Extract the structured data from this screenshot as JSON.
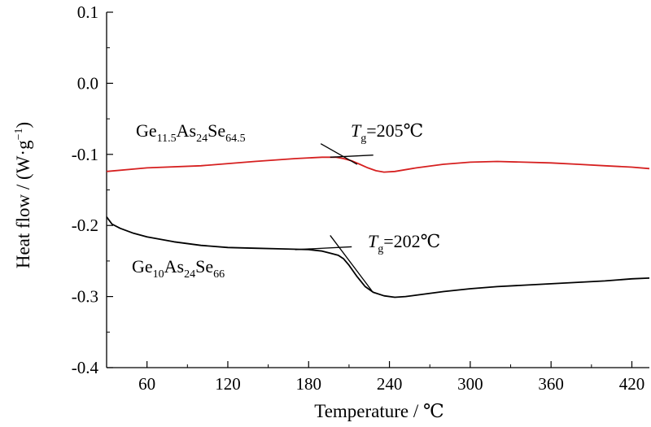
{
  "chart_data": {
    "type": "line",
    "xlabel": "Temperature / ℃",
    "ylabel": {
      "main": "Heat flow / (W·g",
      "sup": "−1",
      "close": ")"
    },
    "xlim": [
      30,
      433
    ],
    "ylim": [
      -0.4,
      0.1
    ],
    "xticks": [
      "60",
      "120",
      "180",
      "240",
      "300",
      "360",
      "420"
    ],
    "xtick_values": [
      60,
      120,
      180,
      240,
      300,
      360,
      420
    ],
    "yticks": [
      "0.1",
      "0.0",
      "-0.1",
      "-0.2",
      "-0.3",
      "-0.4"
    ],
    "ytick_values": [
      0.1,
      0.0,
      -0.1,
      -0.2,
      -0.3,
      -0.4
    ],
    "grid": false,
    "series": [
      {
        "name": "Ge11.5As24Se64.5",
        "color": "#d62020",
        "x": [
          30,
          60,
          100,
          140,
          170,
          190,
          200,
          206,
          212,
          218,
          224,
          230,
          236,
          244,
          260,
          280,
          300,
          320,
          340,
          360,
          380,
          400,
          420,
          433
        ],
        "y": [
          -0.124,
          -0.119,
          -0.116,
          -0.11,
          -0.106,
          -0.104,
          -0.104,
          -0.106,
          -0.109,
          -0.114,
          -0.119,
          -0.123,
          -0.125,
          -0.124,
          -0.119,
          -0.114,
          -0.111,
          -0.11,
          -0.111,
          -0.112,
          -0.114,
          -0.116,
          -0.118,
          -0.12
        ]
      },
      {
        "name": "Ge10As24Se66",
        "color": "#000000",
        "x": [
          30,
          34,
          40,
          50,
          60,
          80,
          100,
          120,
          140,
          160,
          180,
          190,
          196,
          202,
          206,
          210,
          216,
          222,
          228,
          236,
          244,
          252,
          260,
          280,
          300,
          320,
          340,
          360,
          380,
          400,
          420,
          433
        ],
        "y": [
          -0.188,
          -0.198,
          -0.204,
          -0.211,
          -0.216,
          -0.223,
          -0.228,
          -0.231,
          -0.232,
          -0.233,
          -0.234,
          -0.236,
          -0.239,
          -0.242,
          -0.247,
          -0.256,
          -0.272,
          -0.286,
          -0.294,
          -0.299,
          -0.301,
          -0.3,
          -0.298,
          -0.293,
          -0.289,
          -0.286,
          -0.284,
          -0.282,
          -0.28,
          -0.278,
          -0.275,
          -0.274
        ]
      }
    ],
    "annotations": [
      {
        "kind": "series-label",
        "base1": "Ge",
        "sub1": "11.5",
        "base2": "As",
        "sub2": "24",
        "base3": "Se",
        "sub3": "64.5"
      },
      {
        "kind": "series-label",
        "base1": "Ge",
        "sub1": "10",
        "base2": "As",
        "sub2": "24",
        "base3": "Se",
        "sub3": "66"
      },
      {
        "kind": "tg",
        "symbol": "T",
        "subscript": "g",
        "value": "=205℃",
        "tangent_lines": [
          {
            "x": [
              189,
              216
            ],
            "y": [
              -0.085,
              -0.114
            ]
          },
          {
            "x": [
              196,
              228
            ],
            "y": [
              -0.104,
              -0.101
            ]
          }
        ]
      },
      {
        "kind": "tg",
        "symbol": "T",
        "subscript": "g",
        "value": "=202℃",
        "tangent_lines": [
          {
            "x": [
              170,
              212
            ],
            "y": [
              -0.234,
              -0.23
            ]
          },
          {
            "x": [
              196,
              227
            ],
            "y": [
              -0.214,
              -0.292
            ]
          }
        ]
      }
    ]
  }
}
